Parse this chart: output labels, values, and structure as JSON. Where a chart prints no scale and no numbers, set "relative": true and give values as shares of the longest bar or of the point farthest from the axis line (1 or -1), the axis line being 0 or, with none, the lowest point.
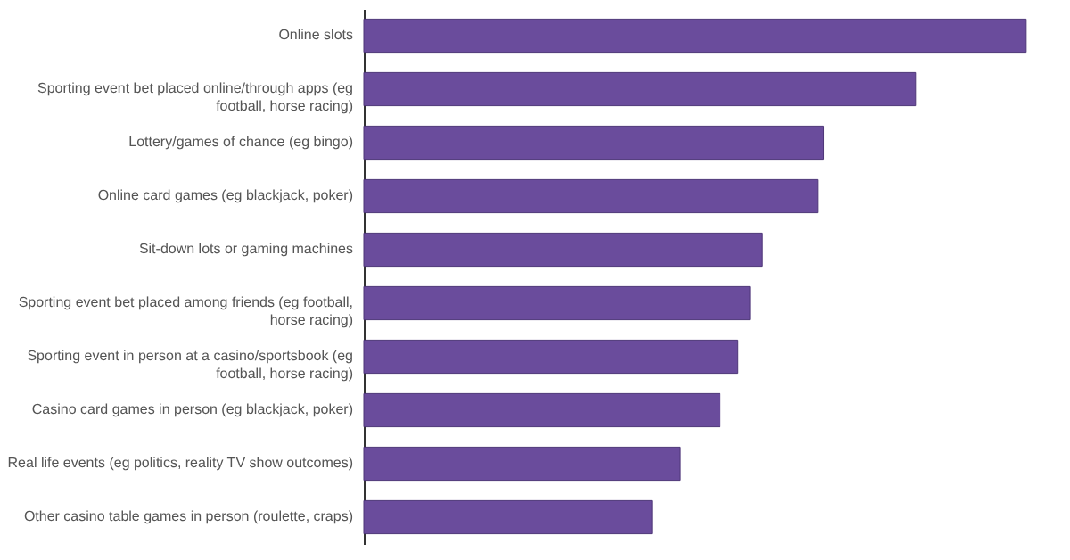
{
  "chart_data": {
    "type": "bar",
    "orientation": "horizontal",
    "relative": true,
    "color": "#6a4c9c",
    "categories": [
      "Online slots",
      "Sporting event bet placed online/through apps (eg football, horse racing)",
      "Lottery/games of chance (eg bingo)",
      "Online card games (eg blackjack, poker)",
      "Sit-down lots or gaming machines",
      "Sporting event bet placed among friends (eg football, horse racing)",
      "Sporting event in person at a casino/sportsbook (eg football, horse racing)",
      "Casino card games in person (eg blackjack, poker)",
      "Real life events (eg politics, reality TV show outcomes)",
      "Other casino table games in person (roulette, craps)"
    ],
    "values": [
      1,
      0.833,
      0.694,
      0.685,
      0.602,
      0.583,
      0.565,
      0.538,
      0.478,
      0.435
    ]
  }
}
